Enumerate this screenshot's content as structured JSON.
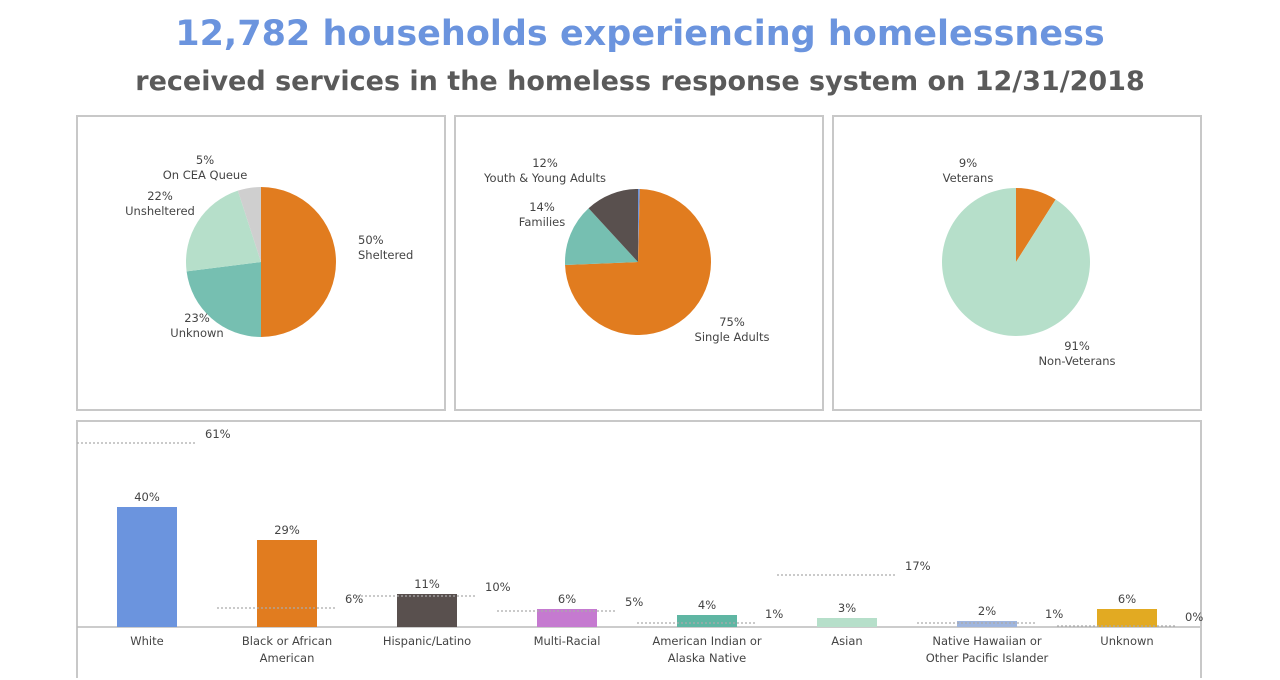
{
  "header": {
    "title": "12,782 households experiencing homelessness",
    "subtitle": "received services in the homeless response system on 12/31/2018"
  },
  "chart_data": [
    {
      "type": "pie",
      "slices": [
        {
          "label": "Sheltered",
          "value": 50,
          "pct": "50%",
          "color": "#e17c1f"
        },
        {
          "label": "Unknown",
          "value": 23,
          "pct": "23%",
          "color": "#76bfb1"
        },
        {
          "label": "Unsheltered",
          "value": 22,
          "pct": "22%",
          "color": "#b6dfca"
        },
        {
          "label": "On CEA Queue",
          "value": 5,
          "pct": "5%",
          "color": "#cfcfcf"
        }
      ]
    },
    {
      "type": "pie",
      "slices": [
        {
          "label": "",
          "value": 0.4,
          "pct": "",
          "color": "#6b94de"
        },
        {
          "label": "Single Adults",
          "value": 75,
          "pct": "75%",
          "color": "#e17c1f"
        },
        {
          "label": "Families",
          "value": 14,
          "pct": "14%",
          "color": "#76bfb1"
        },
        {
          "label": "Youth & Young Adults",
          "value": 12,
          "pct": "12%",
          "color": "#59504e"
        }
      ]
    },
    {
      "type": "pie",
      "slices": [
        {
          "label": "Veterans",
          "value": 9,
          "pct": "9%",
          "color": "#e17c1f"
        },
        {
          "label": "Non-Veterans",
          "value": 91,
          "pct": "91%",
          "color": "#b6dfca"
        }
      ]
    },
    {
      "type": "bar",
      "ylim": [
        0,
        65
      ],
      "grid": false,
      "categories": [
        [
          "White"
        ],
        [
          "Black or African",
          "American"
        ],
        [
          "Hispanic/Latino"
        ],
        [
          "Multi-Racial"
        ],
        [
          "American Indian or",
          "Alaska Native"
        ],
        [
          "Asian"
        ],
        [
          "Native Hawaiian or",
          "Other Pacific Islander"
        ],
        [
          "Unknown"
        ]
      ],
      "values": [
        40,
        29,
        11,
        6,
        4,
        3,
        2,
        6
      ],
      "labels": [
        "40%",
        "29%",
        "11%",
        "6%",
        "4%",
        "3%",
        "2%",
        "6%"
      ],
      "reference_values": [
        61,
        6,
        10,
        5,
        1,
        17,
        1,
        0
      ],
      "reference_labels": [
        "61%",
        "6%",
        "10%",
        "5%",
        "1%",
        "17%",
        "1%",
        "0%"
      ],
      "colors": [
        "#6b94de",
        "#e17c1f",
        "#59504e",
        "#c57ad0",
        "#5fb6a3",
        "#b6dfca",
        "#9fb5dd",
        "#e2aa22"
      ]
    }
  ]
}
